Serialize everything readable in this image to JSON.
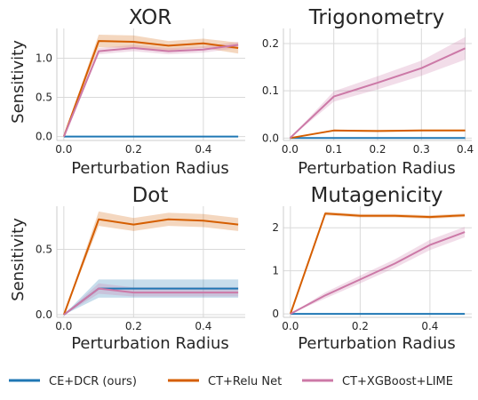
{
  "legend": {
    "entries": [
      {
        "label": "CE+DCR (ours)",
        "color": "#1f77b4"
      },
      {
        "label": "CT+Relu Net",
        "color": "#d55e00"
      },
      {
        "label": "CT+XGBoost+LIME",
        "color": "#cc79a7"
      }
    ]
  },
  "chart_data": [
    {
      "type": "line",
      "title": "XOR",
      "xlabel": "Perturbation Radius",
      "ylabel": "Sensitivity",
      "x": [
        0,
        0.1,
        0.2,
        0.3,
        0.4,
        0.5
      ],
      "xlim": [
        -0.02,
        0.52
      ],
      "ylim": [
        -0.05,
        1.38
      ],
      "xticks": [
        0.0,
        0.2,
        0.4
      ],
      "xtick_labels": [
        "0.0",
        "0.2",
        "0.4"
      ],
      "yticks": [
        0.0,
        0.5,
        1.0
      ],
      "ytick_labels": [
        "0.0",
        "0.5",
        "1.0"
      ],
      "grid": true,
      "series": [
        {
          "name": "CE+DCR (ours)",
          "color": "#1f77b4",
          "values": [
            0,
            0,
            0,
            0,
            0,
            0
          ],
          "lower": [
            0,
            0,
            0,
            0,
            0,
            0
          ],
          "upper": [
            0,
            0,
            0,
            0,
            0,
            0
          ]
        },
        {
          "name": "CT+Relu Net",
          "color": "#d55e00",
          "values": [
            0,
            1.22,
            1.21,
            1.16,
            1.19,
            1.13
          ],
          "lower": [
            0,
            1.14,
            1.13,
            1.1,
            1.13,
            1.06
          ],
          "upper": [
            0,
            1.3,
            1.29,
            1.22,
            1.25,
            1.2
          ]
        },
        {
          "name": "CT+XGBoost+LIME",
          "color": "#cc79a7",
          "values": [
            0,
            1.09,
            1.13,
            1.09,
            1.11,
            1.17
          ],
          "lower": [
            0,
            1.05,
            1.09,
            1.05,
            1.07,
            1.13
          ],
          "upper": [
            0,
            1.13,
            1.17,
            1.13,
            1.15,
            1.21
          ]
        }
      ]
    },
    {
      "type": "line",
      "title": "Trigonometry",
      "xlabel": "Perturbation Radius",
      "ylabel": "",
      "x": [
        0,
        0.1,
        0.2,
        0.3,
        0.4
      ],
      "xlim": [
        -0.015,
        0.415
      ],
      "ylim": [
        -0.005,
        0.232
      ],
      "xticks": [
        0.0,
        0.1,
        0.2,
        0.3,
        0.4
      ],
      "xtick_labels": [
        "0.0",
        "0.1",
        "0.2",
        "0.3",
        "0.4"
      ],
      "yticks": [
        0.0,
        0.1,
        0.2
      ],
      "ytick_labels": [
        "0.0",
        "0.1",
        "0.2"
      ],
      "grid": true,
      "series": [
        {
          "name": "CE+DCR (ours)",
          "color": "#1f77b4",
          "values": [
            0,
            0,
            0,
            0,
            0
          ],
          "lower": [
            0,
            0,
            0,
            0,
            0
          ],
          "upper": [
            0,
            0,
            0,
            0,
            0
          ]
        },
        {
          "name": "CT+Relu Net",
          "color": "#d55e00",
          "values": [
            0,
            0.016,
            0.015,
            0.016,
            0.016
          ],
          "lower": [
            0,
            0.014,
            0.013,
            0.014,
            0.014
          ],
          "upper": [
            0,
            0.018,
            0.017,
            0.018,
            0.018
          ]
        },
        {
          "name": "CT+XGBoost+LIME",
          "color": "#cc79a7",
          "values": [
            0,
            0.088,
            0.117,
            0.148,
            0.19
          ],
          "lower": [
            0,
            0.077,
            0.103,
            0.132,
            0.166
          ],
          "upper": [
            0,
            0.099,
            0.131,
            0.164,
            0.214
          ]
        }
      ]
    },
    {
      "type": "line",
      "title": "Dot",
      "xlabel": "Perturbation Radius",
      "ylabel": "Sensitivity",
      "x": [
        0,
        0.1,
        0.2,
        0.3,
        0.4,
        0.5
      ],
      "xlim": [
        -0.02,
        0.52
      ],
      "ylim": [
        -0.02,
        0.83
      ],
      "xticks": [
        0.0,
        0.2,
        0.4
      ],
      "xtick_labels": [
        "0.0",
        "0.2",
        "0.4"
      ],
      "yticks": [
        0.0,
        0.5
      ],
      "ytick_labels": [
        "0.0",
        "0.5"
      ],
      "grid": true,
      "series": [
        {
          "name": "CE+DCR (ours)",
          "color": "#1f77b4",
          "values": [
            0,
            0.2,
            0.2,
            0.2,
            0.2,
            0.2
          ],
          "lower": [
            0,
            0.13,
            0.13,
            0.13,
            0.13,
            0.13
          ],
          "upper": [
            0,
            0.27,
            0.27,
            0.27,
            0.27,
            0.27
          ]
        },
        {
          "name": "CT+Relu Net",
          "color": "#d55e00",
          "values": [
            0,
            0.73,
            0.69,
            0.73,
            0.72,
            0.69
          ],
          "lower": [
            0,
            0.68,
            0.64,
            0.68,
            0.67,
            0.64
          ],
          "upper": [
            0,
            0.79,
            0.74,
            0.78,
            0.77,
            0.74
          ]
        },
        {
          "name": "CT+XGBoost+LIME",
          "color": "#cc79a7",
          "values": [
            0,
            0.2,
            0.17,
            0.17,
            0.17,
            0.17
          ],
          "lower": [
            0,
            0.16,
            0.14,
            0.14,
            0.14,
            0.14
          ],
          "upper": [
            0,
            0.24,
            0.21,
            0.21,
            0.21,
            0.21
          ]
        }
      ]
    },
    {
      "type": "line",
      "title": "Mutagenicity",
      "xlabel": "Perturbation Radius",
      "ylabel": "",
      "x": [
        0,
        0.1,
        0.2,
        0.3,
        0.4,
        0.5
      ],
      "xlim": [
        -0.02,
        0.52
      ],
      "ylim": [
        -0.08,
        2.5
      ],
      "xticks": [
        0.0,
        0.2,
        0.4
      ],
      "xtick_labels": [
        "0.0",
        "0.2",
        "0.4"
      ],
      "yticks": [
        0,
        1,
        2
      ],
      "ytick_labels": [
        "0",
        "1",
        "2"
      ],
      "grid": true,
      "series": [
        {
          "name": "CE+DCR (ours)",
          "color": "#1f77b4",
          "values": [
            0,
            0,
            0,
            0,
            0,
            0
          ],
          "lower": [
            0,
            0,
            0,
            0,
            0,
            0
          ],
          "upper": [
            0,
            0,
            0,
            0,
            0,
            0
          ]
        },
        {
          "name": "CT+Relu Net",
          "color": "#d55e00",
          "values": [
            0,
            2.33,
            2.28,
            2.28,
            2.25,
            2.29
          ],
          "lower": [
            0,
            2.29,
            2.24,
            2.24,
            2.21,
            2.25
          ],
          "upper": [
            0,
            2.37,
            2.32,
            2.32,
            2.29,
            2.33
          ]
        },
        {
          "name": "CT+XGBoost+LIME",
          "color": "#cc79a7",
          "values": [
            0,
            0.43,
            0.8,
            1.17,
            1.6,
            1.9
          ],
          "lower": [
            0,
            0.36,
            0.71,
            1.07,
            1.48,
            1.78
          ],
          "upper": [
            0,
            0.5,
            0.89,
            1.27,
            1.72,
            2.02
          ]
        }
      ]
    }
  ]
}
